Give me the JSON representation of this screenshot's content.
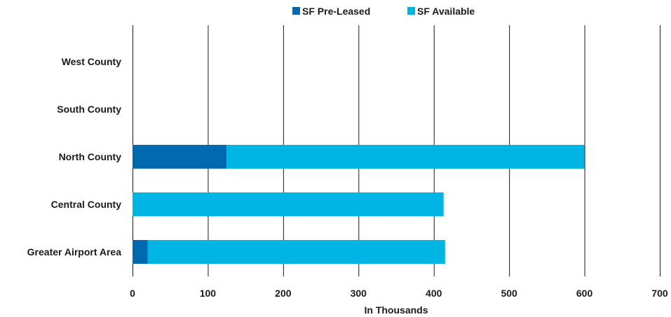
{
  "chart_data": {
    "type": "bar",
    "orientation": "horizontal",
    "stacked": true,
    "categories": [
      "West County",
      "South County",
      "North County",
      "Central County",
      "Greater Airport Area"
    ],
    "series": [
      {
        "name": "SF Pre-Leased",
        "color": "#0069b0",
        "values": [
          0,
          0,
          125,
          0,
          20
        ]
      },
      {
        "name": "SF Available",
        "color": "#00b4e3",
        "values": [
          0,
          0,
          475,
          413,
          395
        ]
      }
    ],
    "xlabel": "In Thousands",
    "xlim": [
      0,
      700
    ],
    "xticks": [
      "0",
      "100",
      "200",
      "300",
      "400",
      "500",
      "600",
      "700"
    ],
    "grid": true,
    "legend_position": "top-center"
  }
}
